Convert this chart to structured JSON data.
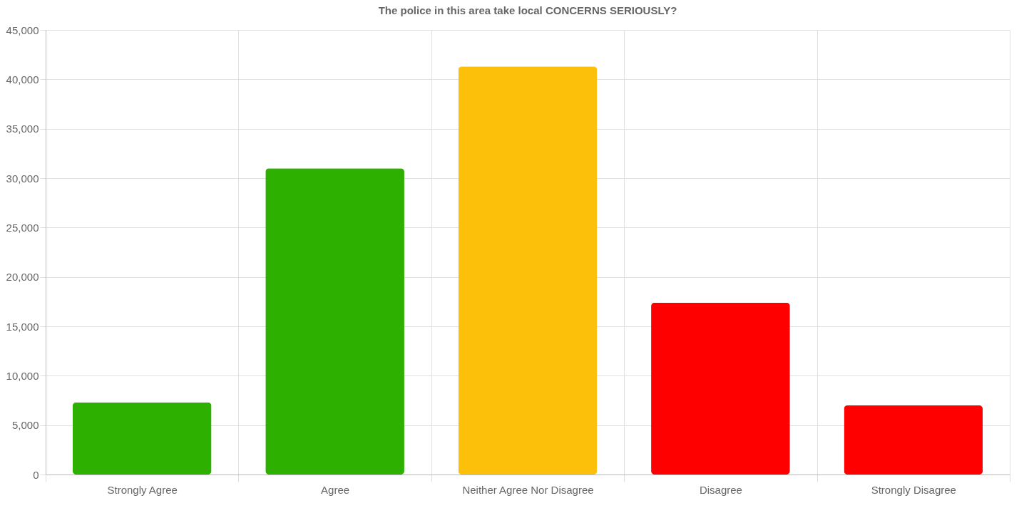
{
  "chart_data": {
    "type": "bar",
    "title": "The police in this area take local CONCERNS SERIOUSLY?",
    "categories": [
      "Strongly Agree",
      "Agree",
      "Neither Agree Nor Disagree",
      "Disagree",
      "Strongly Disagree"
    ],
    "values": [
      7300,
      31000,
      41300,
      17400,
      7000
    ],
    "colors": [
      "#2db000",
      "#2db000",
      "#fdc00a",
      "#ff0000",
      "#ff0000"
    ],
    "ylim": [
      0,
      45000
    ],
    "yticks": [
      0,
      {
        "value": 5000,
        "label": "5,000"
      },
      {
        "value": 10000,
        "label": "10,000"
      },
      {
        "value": 15000,
        "label": "15,000"
      },
      {
        "value": 20000,
        "label": "20,000"
      },
      {
        "value": 25000,
        "label": "25,000"
      },
      {
        "value": 30000,
        "label": "30,000"
      },
      {
        "value": 35000,
        "label": "35,000"
      },
      {
        "value": 40000,
        "label": "40,000"
      },
      {
        "value": 45000,
        "label": "45,000"
      }
    ],
    "grid": true
  }
}
